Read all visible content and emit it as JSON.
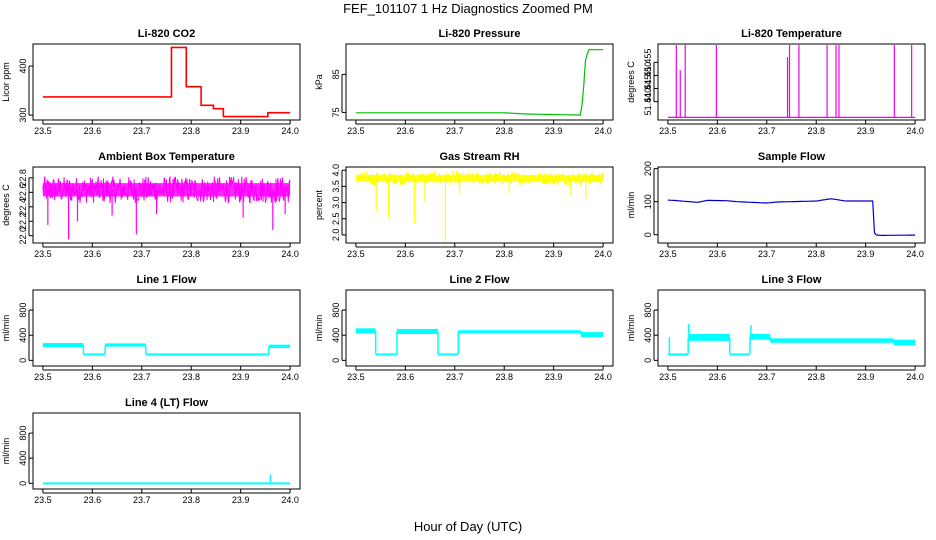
{
  "figure": {
    "title": "FEF_101107  1 Hz Diagnostics Zoomed PM",
    "xlabel": "Hour of Day (UTC)"
  },
  "chart_data": [
    {
      "type": "line",
      "title": "Li-820 CO2",
      "ylabel": "Licor ppm",
      "color": "#ff0000",
      "xlim": [
        23.48,
        24.02
      ],
      "ylim": [
        290,
        445
      ],
      "xticks": [
        "23.5",
        "23.6",
        "23.7",
        "23.8",
        "23.9",
        "24.0"
      ],
      "yticks": [
        "300",
        "400"
      ],
      "series": [
        {
          "x": [
            23.5,
            23.66,
            23.76,
            23.76,
            23.845,
            23.845,
            23.95,
            23.95,
            24.0
          ],
          "y": [
            337,
            337,
            438,
            438,
            320,
            320,
            298,
            298,
            305
          ]
        }
      ],
      "steps": [
        {
          "x0": 23.5,
          "x1": 23.76,
          "y": 337
        },
        {
          "x0": 23.76,
          "x1": 23.79,
          "y": 438
        },
        {
          "x0": 23.79,
          "x1": 23.82,
          "y": 358
        },
        {
          "x0": 23.82,
          "x1": 23.845,
          "y": 320
        },
        {
          "x0": 23.845,
          "x1": 23.865,
          "y": 313
        },
        {
          "x0": 23.865,
          "x1": 23.955,
          "y": 297
        },
        {
          "x0": 23.955,
          "x1": 24.0,
          "y": 305
        }
      ]
    },
    {
      "type": "line",
      "title": "Li-820 Pressure",
      "ylabel": "kPa",
      "color": "#00c000",
      "xlim": [
        23.48,
        24.02
      ],
      "ylim": [
        73,
        93
      ],
      "xticks": [
        "23.5",
        "23.6",
        "23.7",
        "23.8",
        "23.9",
        "24.0"
      ],
      "yticks": [
        "75",
        "85"
      ],
      "series": [
        {
          "x": [
            23.5,
            23.7,
            23.8,
            23.84,
            23.95,
            23.955,
            23.96,
            23.963,
            23.97,
            24.0
          ],
          "y": [
            74.9,
            74.9,
            74.9,
            74.6,
            74.3,
            74.3,
            80,
            88,
            91.5,
            91.5
          ]
        }
      ]
    },
    {
      "type": "line",
      "title": "Li-820 Temperature",
      "ylabel": "degrees C",
      "color": "#ee00ee",
      "xlim": [
        23.48,
        24.02
      ],
      "ylim": [
        51.433,
        51.462
      ],
      "xticks": [
        "23.5",
        "23.6",
        "23.7",
        "23.8",
        "23.9",
        "24.0"
      ],
      "yticks": [
        "51.440",
        "51.445",
        "51.450",
        "51.455"
      ],
      "baseline": 51.434,
      "spikes": [
        {
          "x": 23.517,
          "y": 51.462
        },
        {
          "x": 23.525,
          "y": 51.452
        },
        {
          "x": 23.535,
          "y": 51.462
        },
        {
          "x": 23.598,
          "y": 51.462
        },
        {
          "x": 23.742,
          "y": 51.457
        },
        {
          "x": 23.746,
          "y": 51.462
        },
        {
          "x": 23.765,
          "y": 51.462
        },
        {
          "x": 23.822,
          "y": 51.462
        },
        {
          "x": 23.84,
          "y": 51.462
        },
        {
          "x": 23.846,
          "y": 51.462
        },
        {
          "x": 23.958,
          "y": 51.462
        },
        {
          "x": 23.993,
          "y": 51.462
        }
      ]
    },
    {
      "type": "line",
      "title": "Ambient Box Temperature",
      "ylabel": "degrees C",
      "color": "#ff00ff",
      "xlim": [
        23.48,
        24.02
      ],
      "ylim": [
        21.9,
        22.95
      ],
      "xticks": [
        "23.5",
        "23.6",
        "23.7",
        "23.8",
        "23.9",
        "24.0"
      ],
      "yticks": [
        "22.0",
        "22.2",
        "22.4",
        "22.6",
        "22.8"
      ],
      "band": {
        "low": 22.45,
        "high": 22.82
      },
      "dips": [
        {
          "x": 23.51,
          "y": 22.15
        },
        {
          "x": 23.552,
          "y": 21.95
        },
        {
          "x": 23.57,
          "y": 22.2
        },
        {
          "x": 23.64,
          "y": 22.28
        },
        {
          "x": 23.689,
          "y": 22.02
        },
        {
          "x": 23.73,
          "y": 22.3
        },
        {
          "x": 23.905,
          "y": 22.25
        },
        {
          "x": 23.965,
          "y": 22.08
        },
        {
          "x": 23.99,
          "y": 22.3
        }
      ]
    },
    {
      "type": "line",
      "title": "Gas Stream RH",
      "ylabel": "percent",
      "color": "#ffff00",
      "xlim": [
        23.48,
        24.02
      ],
      "ylim": [
        1.75,
        4.1
      ],
      "xticks": [
        "23.5",
        "23.6",
        "23.7",
        "23.8",
        "23.9",
        "24.0"
      ],
      "yticks": [
        "2.0",
        "2.5",
        "3.0",
        "3.5",
        "4.0"
      ],
      "band": {
        "low": 3.55,
        "high": 3.95
      },
      "dips": [
        {
          "x": 23.541,
          "y": 2.75
        },
        {
          "x": 23.566,
          "y": 2.55
        },
        {
          "x": 23.619,
          "y": 2.35
        },
        {
          "x": 23.64,
          "y": 3.0
        },
        {
          "x": 23.681,
          "y": 1.8
        },
        {
          "x": 23.71,
          "y": 3.25
        },
        {
          "x": 23.81,
          "y": 3.3
        },
        {
          "x": 23.935,
          "y": 3.2
        },
        {
          "x": 23.965,
          "y": 3.1
        }
      ]
    },
    {
      "type": "line",
      "title": "Sample Flow",
      "ylabel": "ml/min",
      "color": "#0000cc",
      "xlim": [
        23.48,
        24.02
      ],
      "ylim": [
        -25,
        205
      ],
      "xticks": [
        "23.5",
        "23.6",
        "23.7",
        "23.8",
        "23.9",
        "24.0"
      ],
      "yticks": [
        "0",
        "100",
        "200"
      ],
      "series": [
        {
          "x": [
            23.5,
            23.52,
            23.56,
            23.58,
            23.62,
            23.64,
            23.7,
            23.72,
            23.8,
            23.83,
            23.86,
            23.915,
            23.918,
            23.93,
            24.0
          ],
          "y": [
            105,
            103,
            98,
            104,
            103,
            100,
            96,
            99,
            102,
            109,
            102,
            102,
            0,
            -2,
            -1
          ]
        }
      ]
    },
    {
      "type": "line",
      "title": "Line 1 Flow",
      "ylabel": "ml/min",
      "color": "#00ffff",
      "xlim": [
        23.48,
        24.02
      ],
      "ylim": [
        -90,
        1120
      ],
      "xticks": [
        "23.5",
        "23.6",
        "23.7",
        "23.8",
        "23.9",
        "24.0"
      ],
      "yticks": [
        "0",
        "400",
        "800"
      ],
      "bands": [
        {
          "x0": 23.5,
          "x1": 23.582,
          "low": 210,
          "high": 275
        },
        {
          "x0": 23.582,
          "x1": 23.626,
          "low": 90,
          "high": 110
        },
        {
          "x0": 23.626,
          "x1": 23.708,
          "low": 220,
          "high": 270
        },
        {
          "x0": 23.708,
          "x1": 23.957,
          "low": 90,
          "high": 110
        },
        {
          "x0": 23.957,
          "x1": 24.0,
          "low": 195,
          "high": 250
        }
      ]
    },
    {
      "type": "line",
      "title": "Line 2 Flow",
      "ylabel": "ml/min",
      "color": "#00ffff",
      "xlim": [
        23.48,
        24.02
      ],
      "ylim": [
        -90,
        1120
      ],
      "xticks": [
        "23.5",
        "23.6",
        "23.7",
        "23.8",
        "23.9",
        "24.0"
      ],
      "yticks": [
        "0",
        "400",
        "800"
      ],
      "bands": [
        {
          "x0": 23.5,
          "x1": 23.54,
          "low": 430,
          "high": 510
        },
        {
          "x0": 23.54,
          "x1": 23.583,
          "low": 90,
          "high": 110
        },
        {
          "x0": 23.583,
          "x1": 23.666,
          "low": 420,
          "high": 500
        },
        {
          "x0": 23.666,
          "x1": 23.707,
          "low": 90,
          "high": 110
        },
        {
          "x0": 23.707,
          "x1": 23.955,
          "low": 430,
          "high": 480
        },
        {
          "x0": 23.955,
          "x1": 24.0,
          "low": 370,
          "high": 450
        }
      ]
    },
    {
      "type": "line",
      "title": "Line 3 Flow",
      "ylabel": "ml/min",
      "color": "#00ffff",
      "xlim": [
        23.48,
        24.02
      ],
      "ylim": [
        -90,
        1120
      ],
      "xticks": [
        "23.5",
        "23.6",
        "23.7",
        "23.8",
        "23.9",
        "24.0"
      ],
      "yticks": [
        "0",
        "400",
        "800"
      ],
      "bands": [
        {
          "x0": 23.5,
          "x1": 23.541,
          "low": 90,
          "high": 110
        },
        {
          "x0": 23.541,
          "x1": 23.625,
          "low": 310,
          "high": 420
        },
        {
          "x0": 23.625,
          "x1": 23.666,
          "low": 90,
          "high": 110
        },
        {
          "x0": 23.666,
          "x1": 23.707,
          "low": 330,
          "high": 420
        },
        {
          "x0": 23.707,
          "x1": 23.957,
          "low": 280,
          "high": 350
        },
        {
          "x0": 23.957,
          "x1": 24.0,
          "low": 240,
          "high": 330
        }
      ],
      "spikes": [
        {
          "x": 23.503,
          "y": 370
        },
        {
          "x": 23.542,
          "y": 580
        },
        {
          "x": 23.668,
          "y": 560
        }
      ]
    },
    {
      "type": "line",
      "title": "Line 4 (LT) Flow",
      "ylabel": "ml/min",
      "color": "#00ffff",
      "xlim": [
        23.48,
        24.02
      ],
      "ylim": [
        -90,
        1120
      ],
      "xticks": [
        "23.5",
        "23.6",
        "23.7",
        "23.8",
        "23.9",
        "24.0"
      ],
      "yticks": [
        "0",
        "400",
        "800"
      ],
      "bands": [
        {
          "x0": 23.5,
          "x1": 24.0,
          "low": 0,
          "high": 15
        }
      ],
      "spikes": [
        {
          "x": 23.96,
          "y": 140
        }
      ]
    }
  ]
}
